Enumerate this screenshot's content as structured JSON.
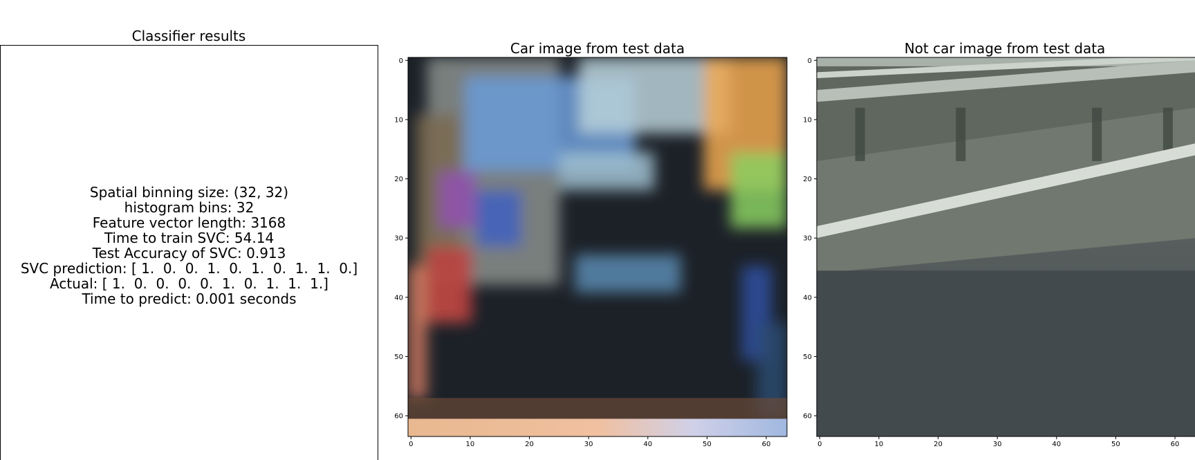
{
  "classifier_panel": {
    "title": "Classifier results",
    "lines": [
      "Spatial binning size: (32, 32)",
      "histogram bins: 32",
      "Feature vector length: 3168",
      "Time to train SVC: 54.14",
      "Test Accuracy of SVC: 0.913",
      "SVC prediction: [ 1.  0.  0.  1.  0.  1.  0.  1.  1.  0.]",
      "Actual: [ 1.  0.  0.  0.  0.  1.  0.  1.  1.  1.]",
      "Time to predict: 0.001 seconds"
    ]
  },
  "chart_data": [
    {
      "type": "image",
      "title": "Car image from test data",
      "xticks": [
        0,
        10,
        20,
        30,
        40,
        50,
        60
      ],
      "yticks": [
        0,
        10,
        20,
        30,
        40,
        50,
        60
      ],
      "xlim": [
        -0.5,
        63.5
      ],
      "ylim": [
        63.5,
        -0.5
      ],
      "colors": {
        "base": "#1c2128",
        "blob_a": "#6a9bd8",
        "blob_b": "#f0a850",
        "blob_c": "#c04040",
        "bottom": "#e8b890"
      }
    },
    {
      "type": "image",
      "title": "Not car image from test data",
      "xticks": [
        0,
        10,
        20,
        30,
        40,
        50,
        60
      ],
      "yticks": [
        0,
        10,
        20,
        30,
        40,
        50,
        60
      ],
      "xlim": [
        -0.5,
        63.5
      ],
      "ylim": [
        63.5,
        -0.5
      ],
      "colors": {
        "wall": "#5f675f",
        "rail": "#b8beb8",
        "road_upper": "#6a716c",
        "road_lower": "#434a4e",
        "stripe": "#d8dcd6"
      }
    }
  ]
}
